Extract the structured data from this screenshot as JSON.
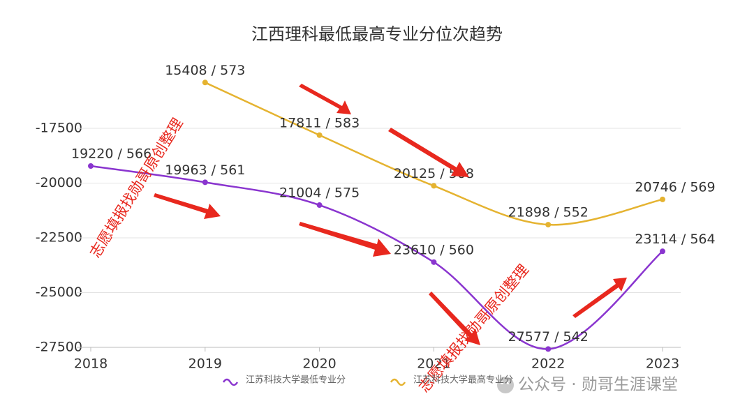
{
  "chart_data": {
    "type": "line",
    "title": "江西理科最低最高专业分位次趋势",
    "categories": [
      "2018",
      "2019",
      "2020",
      "2021",
      "2022",
      "2023"
    ],
    "series": [
      {
        "name": "江苏科技大学最低专业分",
        "color": "#8a35cf",
        "values": [
          -19220,
          -19963,
          -21004,
          -23610,
          -27577,
          -23114
        ],
        "value_labels": [
          "19220 / 566",
          "19963 / 561",
          "21004 / 575",
          "23610 / 560",
          "27577 / 542",
          "23114 / 564"
        ]
      },
      {
        "name": "江苏科技大学最高专业分",
        "color": "#e5b330",
        "values": [
          null,
          -15408,
          -17811,
          -20125,
          -21898,
          -20746
        ],
        "value_labels": [
          null,
          "15408 / 573",
          "17811 / 583",
          "20125 / 568",
          "21898 / 552",
          "20746 / 569"
        ]
      }
    ],
    "ylim": [
      -27500,
      -15000
    ],
    "yticks": [
      -27500,
      -25000,
      -22500,
      -20000,
      -17500
    ],
    "grid": true,
    "legend": "bottom",
    "watermark": "志愿填报找勋哥原创整理",
    "footer": "公众号 · 勋哥生涯课堂"
  }
}
